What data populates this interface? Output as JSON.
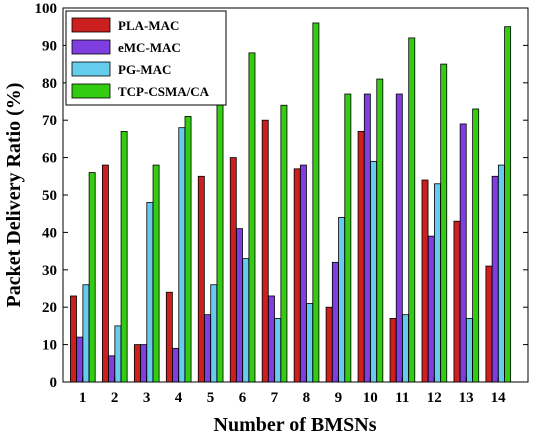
{
  "chart_data": {
    "type": "bar",
    "categories": [
      "1",
      "2",
      "3",
      "4",
      "5",
      "6",
      "7",
      "8",
      "9",
      "10",
      "11",
      "12",
      "13",
      "14"
    ],
    "series": [
      {
        "name": "PLA-MAC",
        "color": "#cc1f1f",
        "values": [
          23,
          58,
          10,
          24,
          55,
          60,
          70,
          57,
          20,
          67,
          17,
          54,
          43,
          31
        ]
      },
      {
        "name": "eMC-MAC",
        "color": "#7f3fe0",
        "values": [
          12,
          7,
          10,
          9,
          18,
          41,
          23,
          58,
          32,
          77,
          77,
          39,
          69,
          55
        ]
      },
      {
        "name": "PG-MAC",
        "color": "#66ccee",
        "values": [
          26,
          15,
          48,
          68,
          26,
          33,
          17,
          21,
          44,
          59,
          18,
          53,
          17,
          58
        ]
      },
      {
        "name": "TCP-CSMA/CA",
        "color": "#33cc11",
        "values": [
          56,
          67,
          58,
          71,
          95,
          88,
          74,
          96,
          77,
          81,
          92,
          85,
          73,
          95
        ]
      }
    ],
    "xlabel": "Number of BMSNs",
    "ylabel": "Packet Delivery Ratio (%)",
    "ylim": [
      0,
      100
    ],
    "yticks": [
      0,
      10,
      20,
      30,
      40,
      50,
      60,
      70,
      80,
      90,
      100
    ],
    "grid": false,
    "legend_position": "top-left"
  }
}
